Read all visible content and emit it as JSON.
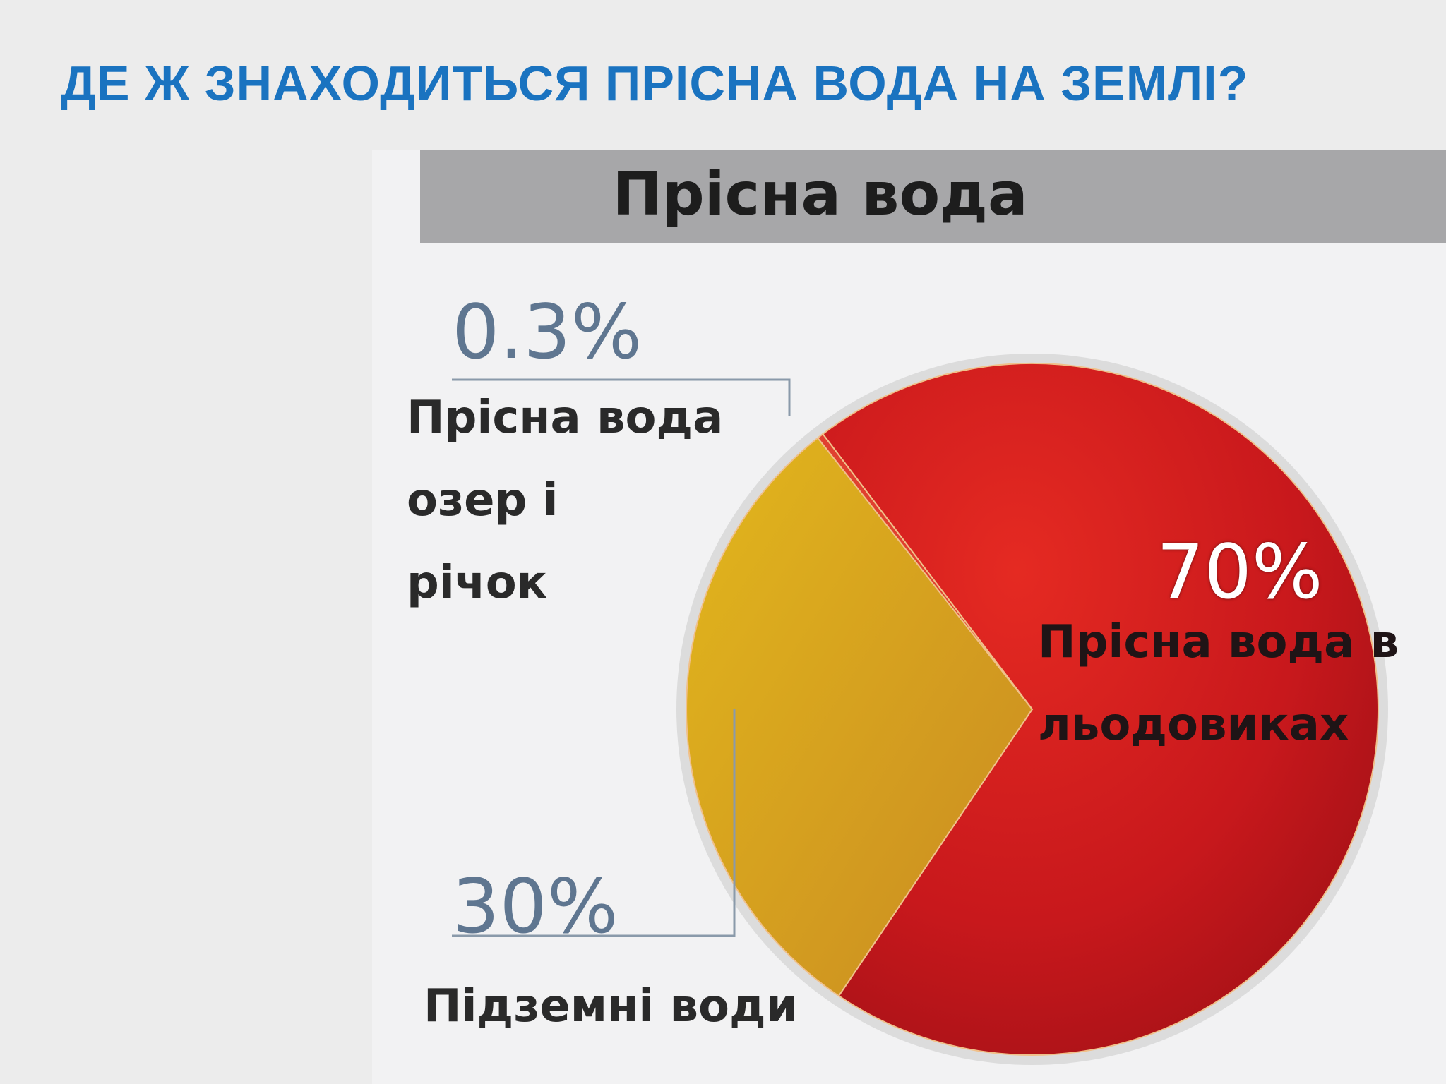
{
  "slide": {
    "title": "ДЕ Ж ЗНАХОДИТЬСЯ ПРІСНА ВОДА НА ЗЕМЛІ?"
  },
  "chart_data": {
    "type": "pie",
    "title": "Прісна вода",
    "slices": [
      {
        "name_lines": [
          "Прісна вода в",
          "льодовиках"
        ],
        "value": 70,
        "label": "70%",
        "color": "#c9181c"
      },
      {
        "name_lines": [
          "Підземні води"
        ],
        "value": 30,
        "label": "30%",
        "color": "#d8a21e"
      },
      {
        "name_lines": [
          "Прісна вода",
          "озер і",
          "річок"
        ],
        "value": 0.3,
        "label": "0.3%",
        "color": "#e04030"
      }
    ]
  },
  "colors": {
    "title": "#1a73c0",
    "header_bar": "#a7a7a9",
    "panel": "#f2f2f3"
  }
}
